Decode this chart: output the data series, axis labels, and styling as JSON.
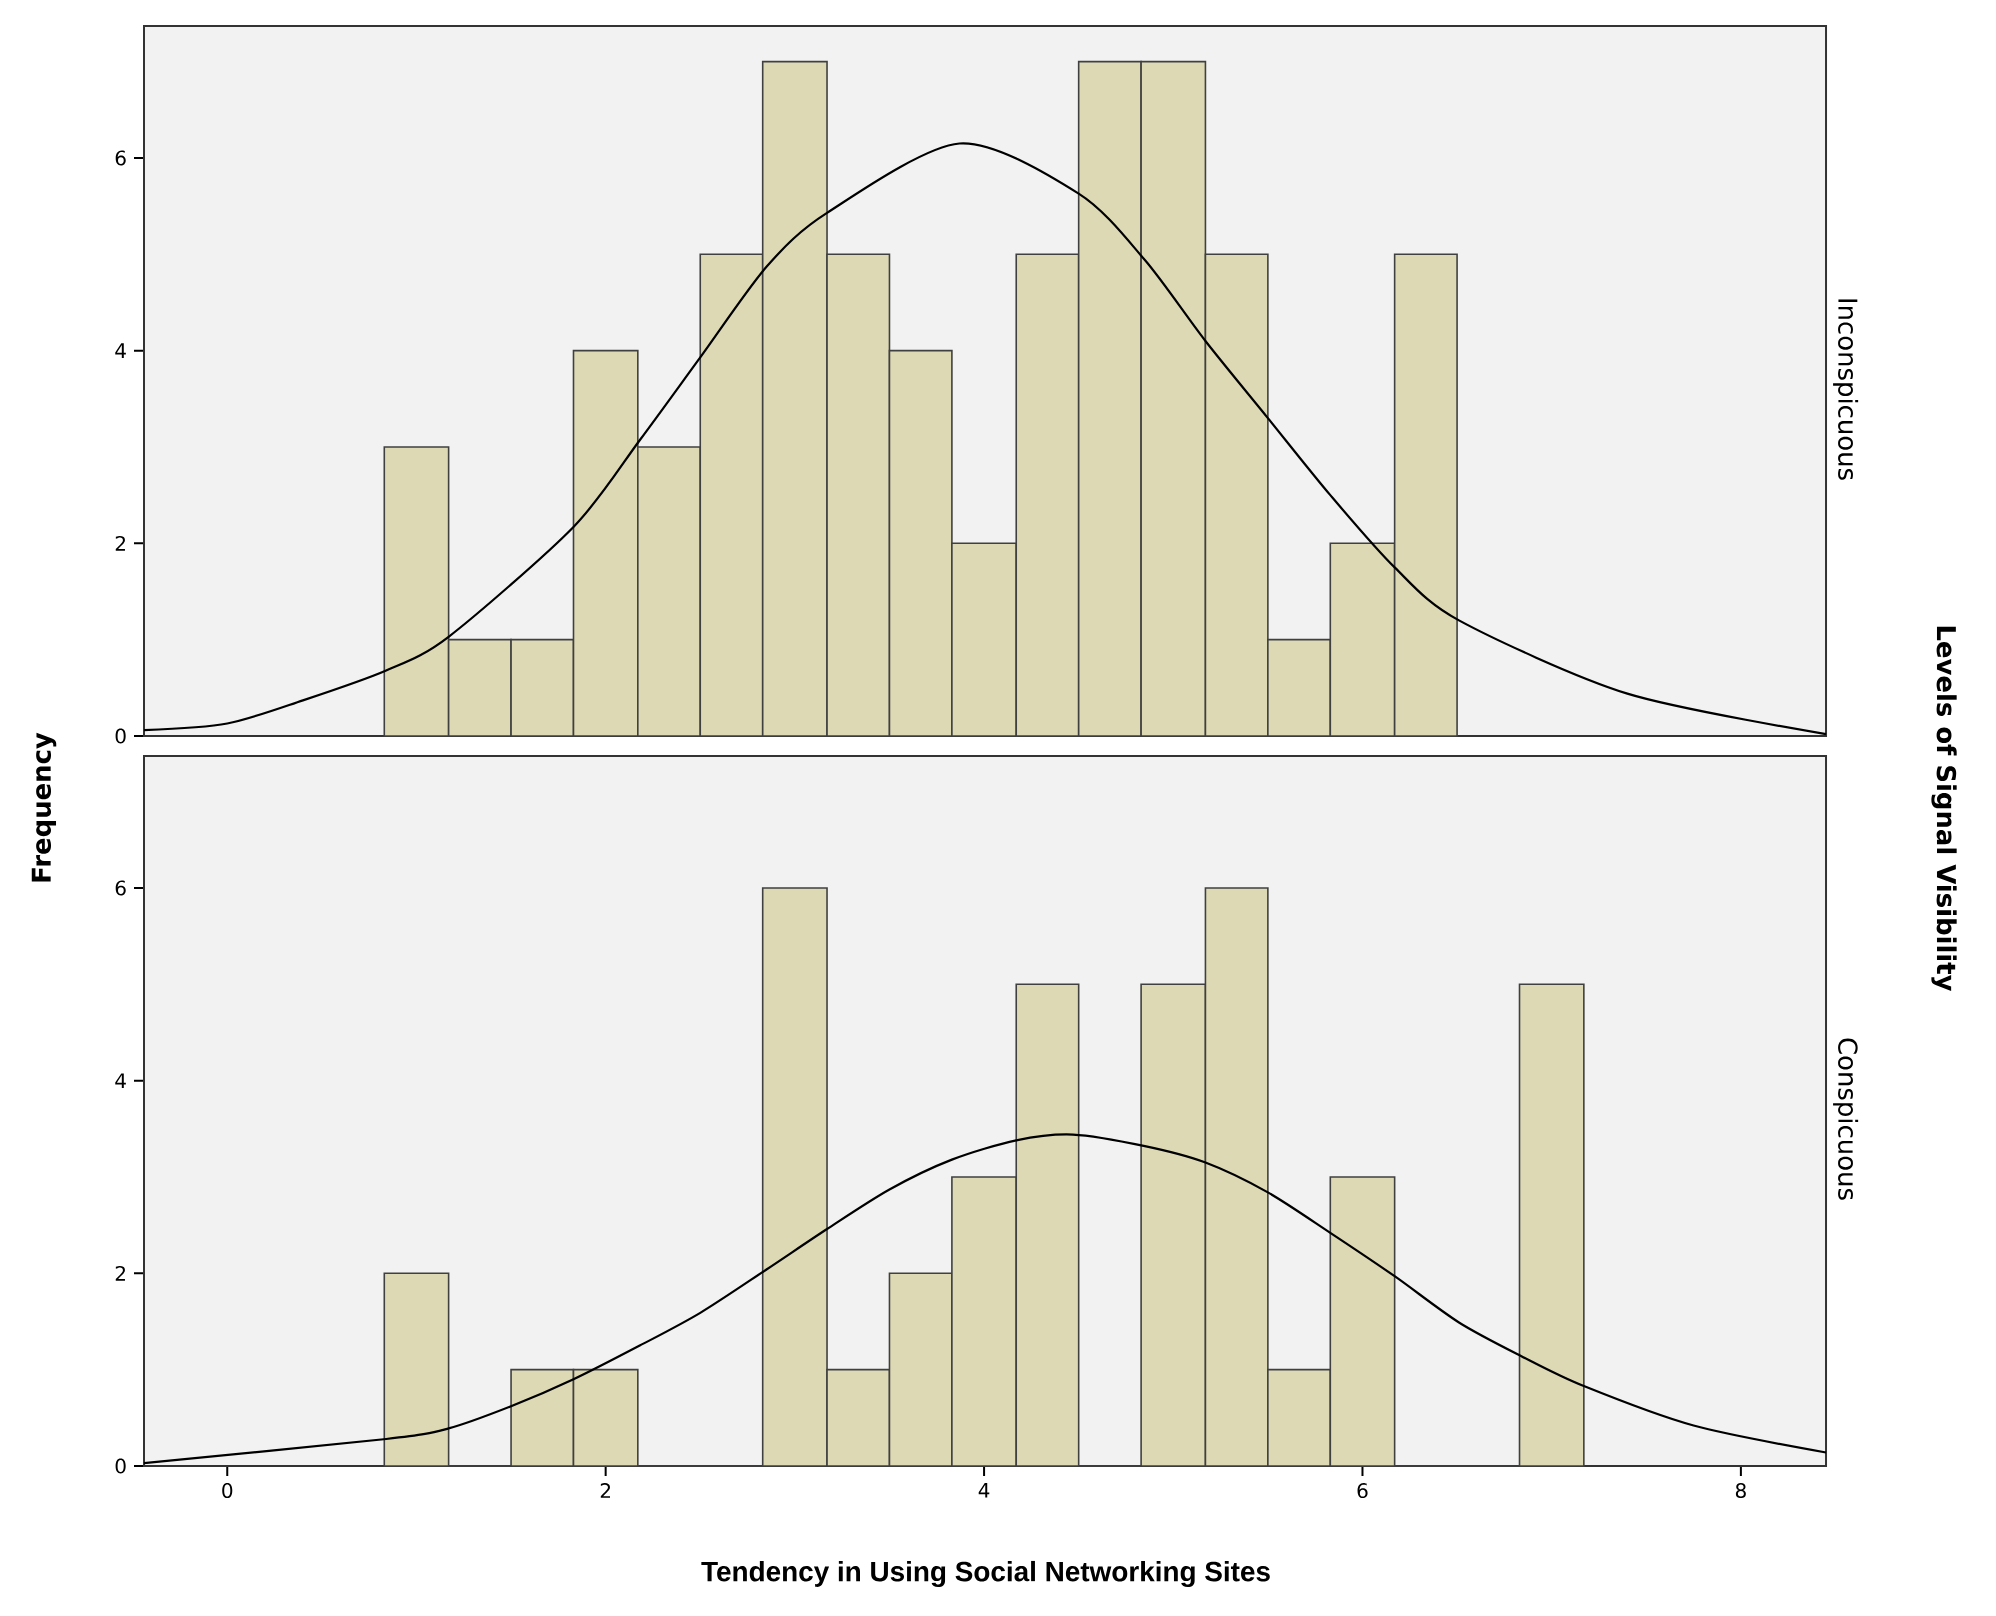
{
  "chart_data": [
    {
      "type": "histogram",
      "title": "Inconspicuous",
      "ylabel": "Frequency",
      "y2label": "Levels of Signal Visibility",
      "bins": [
        0.83,
        1.17,
        1.5,
        1.83,
        2.17,
        2.5,
        2.83,
        3.17,
        3.5,
        3.83,
        4.17,
        4.5,
        4.83,
        5.17,
        5.5,
        5.83,
        6.17,
        6.5
      ],
      "series": [
        {
          "color": "#ddd9b4",
          "values": [
            3,
            1,
            1,
            4,
            3,
            5,
            7,
            5,
            4,
            2,
            5,
            7,
            7,
            5,
            1,
            2,
            5
          ]
        },
        {
          "type": "line",
          "color": "#000000",
          "x": [
            -0.44,
            0,
            0.4,
            0.84,
            1.17,
            1.83,
            2.18,
            2.5,
            2.85,
            3.17,
            3.87,
            4.5,
            4.85,
            5.17,
            5.5,
            5.83,
            6.17,
            6.51,
            7.4,
            8.45
          ],
          "values": [
            0.06,
            0.13,
            0.37,
            0.68,
            1.03,
            2.17,
            3.07,
            3.93,
            4.87,
            5.43,
            6.15,
            5.63,
            4.94,
            4.1,
            3.3,
            2.5,
            1.75,
            1.2,
            0.44,
            0.02
          ]
        }
      ],
      "xlim": [
        -0.44,
        8.45
      ],
      "ylim": [
        0,
        7.37
      ],
      "yticks": [
        0,
        2,
        4,
        6
      ],
      "tick_labels": "y"
    },
    {
      "type": "histogram",
      "title": "Conspicuous",
      "xlabel": "Tendency in Using Social Networking Sites",
      "bins": [
        0.83,
        1.17,
        1.5,
        1.83,
        2.17,
        2.83,
        3.17,
        3.5,
        3.83,
        4.17,
        4.5,
        4.83,
        5.17,
        5.5,
        5.83,
        6.17,
        6.83,
        7.17
      ],
      "series": [
        {
          "color": "#ddd9b4",
          "values": [
            2,
            0,
            1,
            1,
            0,
            6,
            1,
            2,
            3,
            5,
            0,
            5,
            6,
            1,
            3,
            0,
            5
          ]
        },
        {
          "type": "line",
          "color": "#000000",
          "x": [
            -0.44,
            0.84,
            1.17,
            1.5,
            1.83,
            2.18,
            2.5,
            2.85,
            3.17,
            3.5,
            3.83,
            4.17,
            4.47,
            4.85,
            5.17,
            5.5,
            5.83,
            6.17,
            6.51,
            6.84,
            7.17,
            7.75,
            8.45
          ],
          "values": [
            0.03,
            0.28,
            0.39,
            0.62,
            0.9,
            1.25,
            1.59,
            2.04,
            2.46,
            2.87,
            3.18,
            3.38,
            3.44,
            3.32,
            3.15,
            2.84,
            2.42,
            1.97,
            1.49,
            1.14,
            0.83,
            0.42,
            0.14
          ]
        }
      ],
      "xlim": [
        -0.44,
        8.45
      ],
      "xticks": [
        0,
        2,
        4,
        6,
        8
      ],
      "ylim": [
        0,
        7.37
      ],
      "yticks": [
        0,
        2,
        4,
        6
      ]
    }
  ]
}
